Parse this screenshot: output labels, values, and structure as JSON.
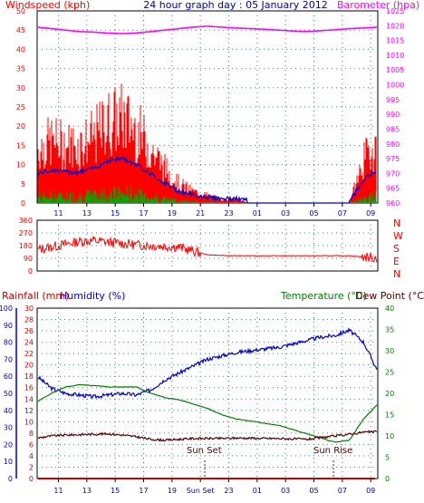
{
  "header": {
    "title": "24 hour graph day : 05 January 2012",
    "left_label": "Windspeed (kph)",
    "right_label": "Barometer (hpa)"
  },
  "middle": {
    "compass": [
      "N",
      "W",
      "S",
      "E",
      "N"
    ]
  },
  "bottom": {
    "rainfall_label": "Rainfall (mm)",
    "humidity_label": "Humidity (%)",
    "temperature_label": "Temperature (°C)",
    "dewpoint_label": "Dew Point (°C)",
    "sunset_label": "Sun Set",
    "sunrise_label": "Sun Rise"
  },
  "colors": {
    "wind": "#ff0000",
    "gust_avg": "#0000cc",
    "wind_fill": "#00aa00",
    "barometer": "#ff00ff",
    "direction": "#ff0000",
    "humidity": "#0000cc",
    "temperature": "#008000",
    "dewpoint": "#550000",
    "rainfall": "#cc0000",
    "axis_blue": "#0000aa",
    "grid": "#2f8f8f"
  },
  "chart_data": [
    {
      "type": "line",
      "name": "wind_and_pressure",
      "title": "24 hour graph day : 05 January 2012",
      "x_ticks": [
        "11",
        "13",
        "15",
        "17",
        "19",
        "21",
        "23",
        "01",
        "03",
        "05",
        "07",
        "09"
      ],
      "ylim_left": [
        0,
        50
      ],
      "yticks_left": [
        0,
        5,
        10,
        15,
        20,
        25,
        30,
        35,
        40,
        45,
        50
      ],
      "ylim_right": [
        960,
        1025
      ],
      "yticks_right": [
        960,
        965,
        970,
        975,
        980,
        985,
        990,
        995,
        1000,
        1005,
        1010,
        1015,
        1020,
        1025
      ],
      "hours": [
        0,
        1,
        2,
        3,
        4,
        5,
        6,
        7,
        8,
        9,
        10,
        11,
        12,
        13,
        14,
        15,
        16,
        17,
        18,
        19,
        20,
        21,
        22,
        23,
        24
      ],
      "series": [
        {
          "name": "Windspeed (kph)",
          "axis": "left",
          "values": [
            14,
            16,
            15,
            15,
            17,
            21,
            22,
            19,
            14,
            9,
            5,
            3,
            2,
            1,
            1,
            0,
            0,
            0,
            0,
            0,
            0,
            0,
            0,
            11,
            16
          ]
        },
        {
          "name": "Barometer (hpa)",
          "axis": "right",
          "values": [
            1019.5,
            1019,
            1018.5,
            1018,
            1017.8,
            1017.5,
            1017.3,
            1017.5,
            1018,
            1018.5,
            1019,
            1019.5,
            1019.8,
            1019.5,
            1019.2,
            1019,
            1018.8,
            1018.5,
            1018.2,
            1018,
            1018.3,
            1018.6,
            1019,
            1019.2,
            1019.5
          ]
        }
      ]
    },
    {
      "type": "line",
      "name": "wind_direction",
      "ylim": [
        0,
        360
      ],
      "yticks": [
        0,
        90,
        180,
        270,
        360
      ],
      "hours": [
        0,
        1,
        2,
        3,
        4,
        5,
        6,
        7,
        8,
        9,
        10,
        11,
        12,
        13,
        14,
        15,
        16,
        17,
        18,
        19,
        20,
        21,
        22,
        23,
        24
      ],
      "values": [
        150,
        170,
        190,
        210,
        215,
        205,
        195,
        185,
        180,
        175,
        170,
        140,
        115,
        110,
        108,
        108,
        108,
        108,
        108,
        108,
        108,
        108,
        108,
        100,
        90
      ]
    },
    {
      "type": "line",
      "name": "temperature_humidity",
      "x_ticks": [
        "11",
        "13",
        "15",
        "17",
        "19",
        "Sun Set",
        "23",
        "01",
        "03",
        "05",
        "07",
        "09"
      ],
      "ylim_rainfall": [
        0,
        30
      ],
      "yticks_rainfall": [
        0,
        2,
        4,
        6,
        8,
        10,
        12,
        14,
        16,
        18,
        20,
        22,
        24,
        26,
        28,
        30
      ],
      "ylim_humidity": [
        0,
        100
      ],
      "yticks_humidity": [
        0,
        10,
        20,
        30,
        40,
        50,
        60,
        70,
        80,
        90,
        100
      ],
      "ylim_temperature": [
        0,
        40
      ],
      "yticks_temperature": [
        0,
        5,
        10,
        15,
        20,
        25,
        30,
        35,
        40
      ],
      "hours": [
        0,
        1,
        2,
        3,
        4,
        5,
        6,
        7,
        8,
        9,
        10,
        11,
        12,
        13,
        14,
        15,
        16,
        17,
        18,
        19,
        20,
        21,
        22,
        23,
        24
      ],
      "series": [
        {
          "name": "Humidity (%)",
          "axis": "humidity",
          "values": [
            60,
            53,
            50,
            49,
            48,
            49,
            50,
            49,
            52,
            58,
            62,
            66,
            70,
            72,
            74,
            75,
            76,
            77,
            79,
            81,
            83,
            84,
            87,
            80,
            63
          ]
        },
        {
          "name": "Temperature (°C)",
          "axis": "temperature",
          "values": [
            18,
            20,
            21.5,
            22,
            21.8,
            21.5,
            21.5,
            21.5,
            20,
            19,
            18.5,
            17.5,
            16.5,
            15,
            14,
            13.5,
            13,
            12.5,
            11.5,
            10.5,
            9.5,
            8.5,
            9,
            14,
            17.5
          ]
        },
        {
          "name": "Dew Point (°C)",
          "axis": "temperature",
          "values": [
            9.5,
            10,
            10.2,
            10.3,
            10.4,
            10.5,
            10.2,
            9.8,
            9.2,
            9,
            9.2,
            9.4,
            9.4,
            9.4,
            9.5,
            9.5,
            9.4,
            9.4,
            9.3,
            9.2,
            9.6,
            10,
            10.4,
            10.9,
            11
          ]
        },
        {
          "name": "Rainfall (mm)",
          "axis": "rainfall",
          "values": [
            0,
            0,
            0,
            0,
            0,
            0,
            0,
            0,
            0,
            0,
            0,
            0,
            0,
            0,
            0,
            0,
            0,
            0,
            0,
            0,
            0,
            0,
            0,
            0,
            0
          ]
        }
      ],
      "annotations": [
        {
          "label": "Sun Set",
          "hour": 10.3
        },
        {
          "label": "Sun Rise",
          "hour": 20.8
        }
      ]
    }
  ]
}
